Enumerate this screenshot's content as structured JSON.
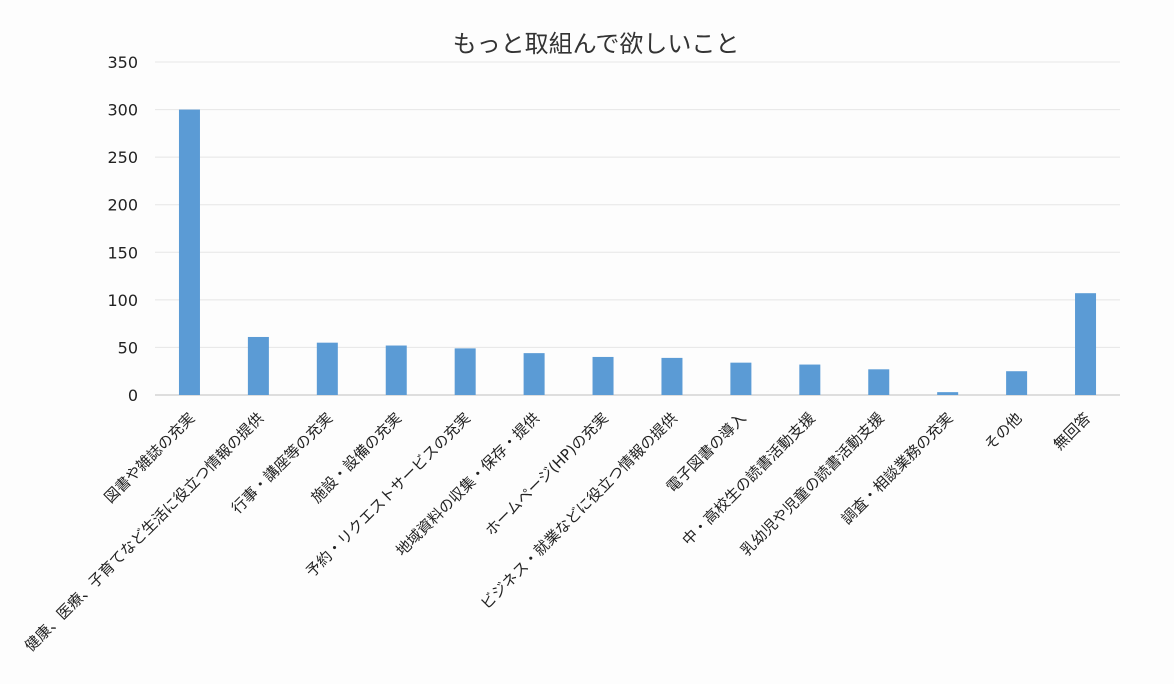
{
  "chart_data": {
    "type": "bar",
    "title": "もっと取組んで欲しいこと",
    "xlabel": "",
    "ylabel": "",
    "ylim": [
      0,
      350
    ],
    "yticks": [
      0,
      50,
      100,
      150,
      200,
      250,
      300,
      350
    ],
    "grid": true,
    "legend": "none",
    "bar_color": "#5b9bd5",
    "categories": [
      "図書や雑誌の充実",
      "健康、医療、子育てなど生活に役立つ情報の提供",
      "行事・講座等の充実",
      "施設・設備の充実",
      "予約・リクエストサービスの充実",
      "地域資料の収集・保存・提供",
      "ホームページ(HP)の充実",
      "ビジネス・就業などに役立つ情報の提供",
      "電子図書の導入",
      "中・高校生の読書活動支援",
      "乳幼児や児童の読書活動支援",
      "調査・相談業務の充実",
      "その他",
      "無回答"
    ],
    "values": [
      300,
      61,
      55,
      52,
      49,
      44,
      40,
      39,
      34,
      32,
      27,
      3,
      25,
      107
    ]
  }
}
